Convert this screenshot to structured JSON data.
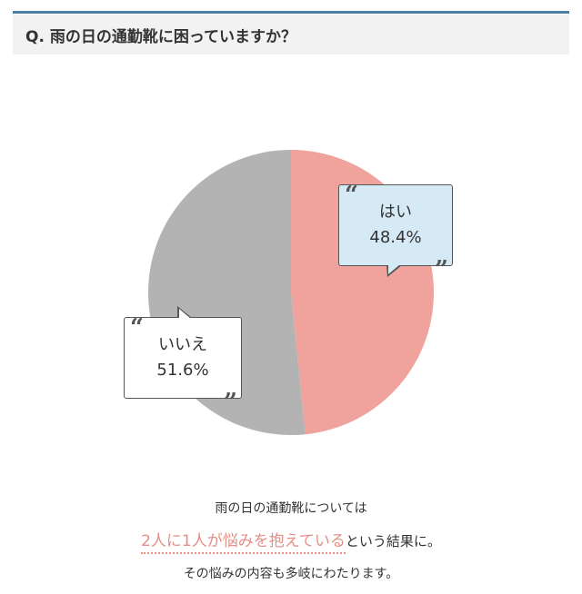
{
  "question": "Q. 雨の日の通勤靴に困っていますか？",
  "colors": {
    "yes": "#f0a39c",
    "no": "#b3b3b3",
    "accent": "#e58f86",
    "bubble_yes": "#d6eaf6"
  },
  "chart_data": {
    "type": "pie",
    "slices": [
      {
        "label": "はい",
        "value": 48.4,
        "display": "48.4%"
      },
      {
        "label": "いいえ",
        "value": 51.6,
        "display": "51.6%"
      }
    ]
  },
  "caption": {
    "line1": "雨の日の通勤靴については",
    "line2_highlight": "2人に1人が悩みを抱えている",
    "line2_rest": "という結果に。",
    "line3": "その悩みの内容も多岐にわたります。"
  }
}
